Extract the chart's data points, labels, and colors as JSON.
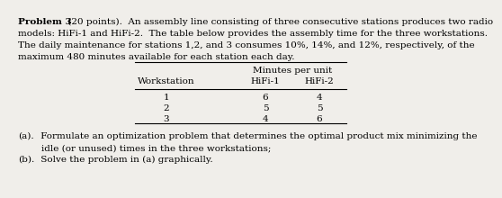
{
  "background_color": "#f0eeea",
  "lines": [
    {
      "bold_part": "Problem 3",
      "normal_part": " (20 points).  An assembly line consisting of three consecutive stations produces two radio"
    },
    {
      "text": "models: HiFi-1 and HiFi-2.  The table below provides the assembly time for the three workstations."
    },
    {
      "text": "The daily maintenance for stations 1,2, and 3 consumes 10%, 14%, and 12%, respectively, of the"
    },
    {
      "text": "maximum 480 minutes available for each station each day."
    }
  ],
  "table": {
    "header_span": "Minutes per unit",
    "col_headers": [
      "Workstation",
      "HiFi-1",
      "HiFi-2"
    ],
    "rows": [
      [
        "1",
        "6",
        "4"
      ],
      [
        "2",
        "5",
        "5"
      ],
      [
        "3",
        "4",
        "6"
      ]
    ]
  },
  "part_a_label": "(a).",
  "part_a_line1": " Formulate an optimization problem that determines the optimal product mix minimizing the",
  "part_a_line2": "idle (or unused) times in the three workstations;",
  "part_b_label": "(b).",
  "part_b_text": " Solve the problem in (a) graphically.",
  "font_size": 7.5,
  "bold_size": 7.5
}
